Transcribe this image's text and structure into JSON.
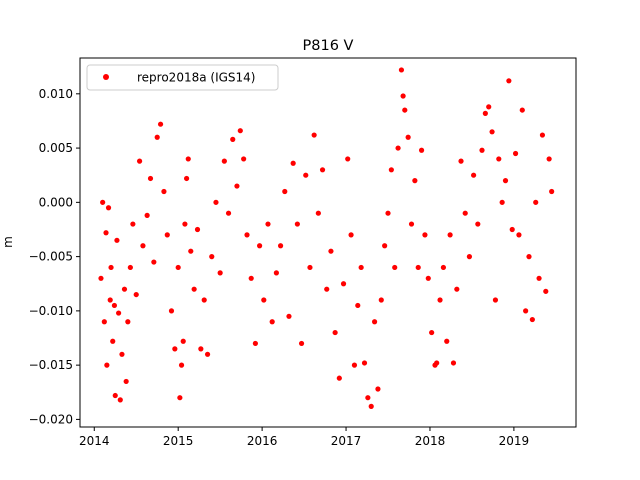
{
  "chart_data": {
    "type": "scatter",
    "title": "P816 V",
    "xlabel": "",
    "ylabel": "m",
    "xlim": [
      2013.83,
      2019.74
    ],
    "ylim": [
      -0.0207,
      0.0133
    ],
    "x_ticks": [
      2014,
      2015,
      2016,
      2017,
      2018,
      2019
    ],
    "x_tick_labels": [
      "2014",
      "2015",
      "2016",
      "2017",
      "2018",
      "2019"
    ],
    "y_ticks": [
      -0.02,
      -0.015,
      -0.01,
      -0.005,
      0.0,
      0.005,
      0.01
    ],
    "y_tick_labels": [
      "−0.020",
      "−0.015",
      "−0.010",
      "−0.005",
      "0.000",
      "0.005",
      "0.010"
    ],
    "grid": false,
    "legend_position": "upper-left",
    "series": [
      {
        "name": "repro2018a (IGS14)",
        "color": "#ff0000",
        "marker": "circle",
        "points": [
          [
            2014.08,
            -0.007
          ],
          [
            2014.1,
            0.0
          ],
          [
            2014.12,
            -0.011
          ],
          [
            2014.14,
            -0.0028
          ],
          [
            2014.15,
            -0.015
          ],
          [
            2014.17,
            -0.0005
          ],
          [
            2014.19,
            -0.009
          ],
          [
            2014.2,
            -0.006
          ],
          [
            2014.22,
            -0.0128
          ],
          [
            2014.24,
            -0.0095
          ],
          [
            2014.25,
            -0.0178
          ],
          [
            2014.27,
            -0.0035
          ],
          [
            2014.29,
            -0.0102
          ],
          [
            2014.31,
            -0.0182
          ],
          [
            2014.33,
            -0.014
          ],
          [
            2014.36,
            -0.008
          ],
          [
            2014.38,
            -0.0165
          ],
          [
            2014.4,
            -0.011
          ],
          [
            2014.43,
            -0.006
          ],
          [
            2014.46,
            -0.002
          ],
          [
            2014.5,
            -0.0085
          ],
          [
            2014.54,
            0.0038
          ],
          [
            2014.58,
            -0.004
          ],
          [
            2014.63,
            -0.0012
          ],
          [
            2014.67,
            0.0022
          ],
          [
            2014.71,
            -0.0055
          ],
          [
            2014.75,
            0.006
          ],
          [
            2014.79,
            0.0072
          ],
          [
            2014.83,
            0.001
          ],
          [
            2014.87,
            -0.003
          ],
          [
            2014.92,
            -0.01
          ],
          [
            2014.96,
            -0.0135
          ],
          [
            2015.0,
            -0.006
          ],
          [
            2015.02,
            -0.018
          ],
          [
            2015.04,
            -0.015
          ],
          [
            2015.06,
            -0.0128
          ],
          [
            2015.08,
            -0.002
          ],
          [
            2015.1,
            0.0022
          ],
          [
            2015.12,
            0.004
          ],
          [
            2015.15,
            -0.0045
          ],
          [
            2015.19,
            -0.008
          ],
          [
            2015.23,
            -0.0025
          ],
          [
            2015.27,
            -0.0135
          ],
          [
            2015.31,
            -0.009
          ],
          [
            2015.35,
            -0.014
          ],
          [
            2015.4,
            -0.005
          ],
          [
            2015.45,
            0.0
          ],
          [
            2015.5,
            -0.0065
          ],
          [
            2015.55,
            0.0038
          ],
          [
            2015.6,
            -0.001
          ],
          [
            2015.65,
            0.0058
          ],
          [
            2015.7,
            0.0015
          ],
          [
            2015.74,
            0.0066
          ],
          [
            2015.78,
            0.004
          ],
          [
            2015.82,
            -0.003
          ],
          [
            2015.87,
            -0.007
          ],
          [
            2015.92,
            -0.013
          ],
          [
            2015.97,
            -0.004
          ],
          [
            2016.02,
            -0.009
          ],
          [
            2016.07,
            -0.002
          ],
          [
            2016.12,
            -0.011
          ],
          [
            2016.17,
            -0.0065
          ],
          [
            2016.22,
            -0.004
          ],
          [
            2016.27,
            0.001
          ],
          [
            2016.32,
            -0.0105
          ],
          [
            2016.37,
            0.0036
          ],
          [
            2016.42,
            -0.002
          ],
          [
            2016.47,
            -0.013
          ],
          [
            2016.52,
            0.0025
          ],
          [
            2016.57,
            -0.006
          ],
          [
            2016.62,
            0.0062
          ],
          [
            2016.67,
            -0.001
          ],
          [
            2016.72,
            0.003
          ],
          [
            2016.77,
            -0.008
          ],
          [
            2016.82,
            -0.0045
          ],
          [
            2016.87,
            -0.012
          ],
          [
            2016.92,
            -0.0162
          ],
          [
            2016.97,
            -0.0075
          ],
          [
            2017.02,
            0.004
          ],
          [
            2017.06,
            -0.003
          ],
          [
            2017.1,
            -0.015
          ],
          [
            2017.14,
            -0.0095
          ],
          [
            2017.18,
            -0.006
          ],
          [
            2017.22,
            -0.0148
          ],
          [
            2017.26,
            -0.018
          ],
          [
            2017.3,
            -0.0188
          ],
          [
            2017.34,
            -0.011
          ],
          [
            2017.38,
            -0.0172
          ],
          [
            2017.42,
            -0.009
          ],
          [
            2017.46,
            -0.004
          ],
          [
            2017.5,
            -0.001
          ],
          [
            2017.54,
            0.003
          ],
          [
            2017.58,
            -0.006
          ],
          [
            2017.62,
            0.005
          ],
          [
            2017.66,
            0.0122
          ],
          [
            2017.68,
            0.0098
          ],
          [
            2017.7,
            0.0085
          ],
          [
            2017.74,
            0.006
          ],
          [
            2017.78,
            -0.002
          ],
          [
            2017.82,
            0.002
          ],
          [
            2017.86,
            -0.006
          ],
          [
            2017.9,
            0.0048
          ],
          [
            2017.94,
            -0.003
          ],
          [
            2017.98,
            -0.007
          ],
          [
            2018.02,
            -0.012
          ],
          [
            2018.06,
            -0.015
          ],
          [
            2018.08,
            -0.0148
          ],
          [
            2018.12,
            -0.009
          ],
          [
            2018.16,
            -0.006
          ],
          [
            2018.2,
            -0.0128
          ],
          [
            2018.24,
            -0.003
          ],
          [
            2018.28,
            -0.0148
          ],
          [
            2018.32,
            -0.008
          ],
          [
            2018.37,
            0.0038
          ],
          [
            2018.42,
            -0.001
          ],
          [
            2018.47,
            -0.005
          ],
          [
            2018.52,
            0.0025
          ],
          [
            2018.57,
            -0.002
          ],
          [
            2018.62,
            0.0048
          ],
          [
            2018.66,
            0.0082
          ],
          [
            2018.7,
            0.0088
          ],
          [
            2018.74,
            0.0065
          ],
          [
            2018.78,
            -0.009
          ],
          [
            2018.82,
            0.004
          ],
          [
            2018.86,
            0.0
          ],
          [
            2018.9,
            0.002
          ],
          [
            2018.94,
            0.0112
          ],
          [
            2018.98,
            -0.0025
          ],
          [
            2019.02,
            0.0045
          ],
          [
            2019.06,
            -0.003
          ],
          [
            2019.1,
            0.0085
          ],
          [
            2019.14,
            -0.01
          ],
          [
            2019.18,
            -0.005
          ],
          [
            2019.22,
            -0.0108
          ],
          [
            2019.26,
            0.0
          ],
          [
            2019.3,
            -0.007
          ],
          [
            2019.34,
            0.0062
          ],
          [
            2019.38,
            -0.0082
          ],
          [
            2019.42,
            0.004
          ],
          [
            2019.45,
            0.001
          ]
        ]
      }
    ]
  }
}
